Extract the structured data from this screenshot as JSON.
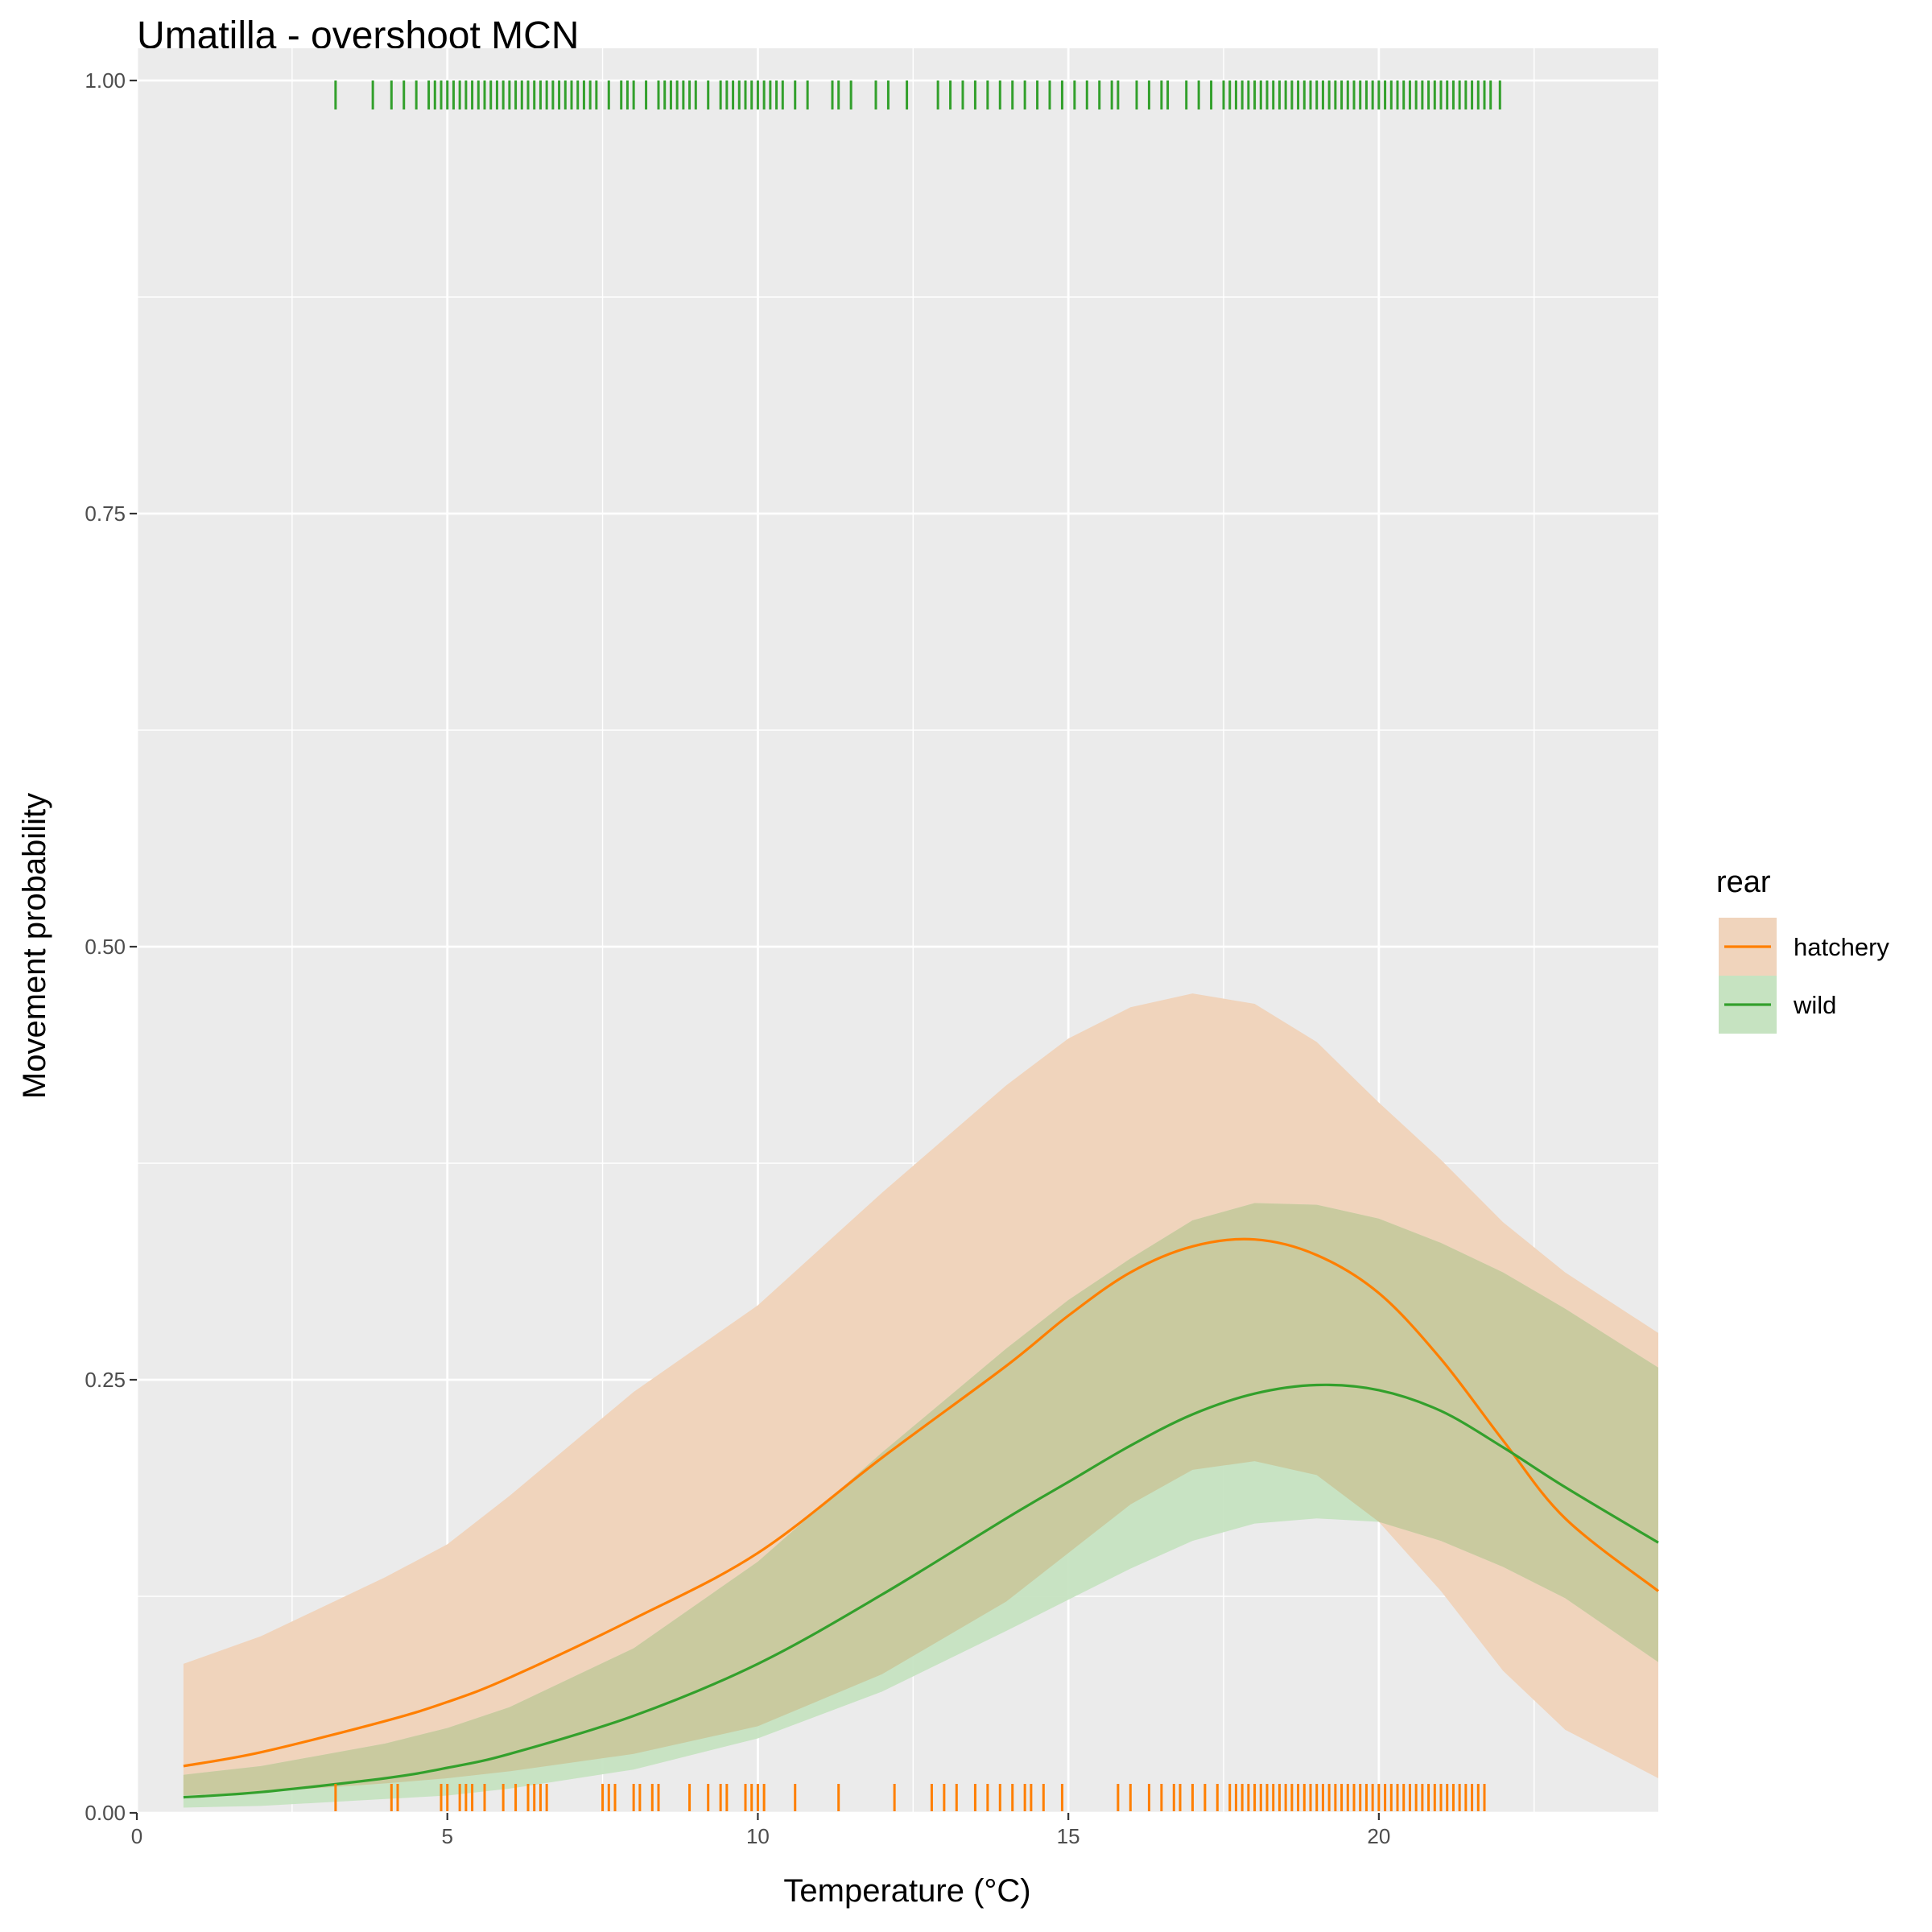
{
  "chart_data": {
    "type": "line",
    "title": "Umatilla - overshoot MCN",
    "xlabel": "Temperature (°C)",
    "ylabel": "Movement probability",
    "xlim": [
      0,
      24.5
    ],
    "ylim": [
      0,
      1
    ],
    "x_ticks": [
      0,
      5,
      10,
      15,
      20
    ],
    "y_ticks": [
      0,
      0.25,
      0.5,
      0.75,
      1
    ],
    "y_tick_labels": [
      "0.00",
      "0.25",
      "0.50",
      "0.75",
      "1.00"
    ],
    "grid": true,
    "legend": {
      "title": "rear",
      "position": "right"
    },
    "series": [
      {
        "name": "hatchery",
        "color": "#FF7F00",
        "fill": "#F0D4BC",
        "x": [
          0.75,
          2,
          4,
          5,
          6,
          8,
          10,
          12,
          14,
          15,
          16,
          17,
          18,
          19,
          20,
          21,
          22,
          23,
          24.5
        ],
        "y": [
          0.027,
          0.035,
          0.053,
          0.064,
          0.078,
          0.112,
          0.15,
          0.205,
          0.258,
          0.287,
          0.312,
          0.327,
          0.331,
          0.322,
          0.3,
          0.262,
          0.215,
          0.17,
          0.128
        ],
        "lower": [
          0.01,
          0.012,
          0.017,
          0.02,
          0.024,
          0.034,
          0.05,
          0.08,
          0.122,
          0.15,
          0.178,
          0.198,
          0.203,
          0.195,
          0.168,
          0.128,
          0.082,
          0.048,
          0.02
        ],
        "upper": [
          0.086,
          0.102,
          0.136,
          0.155,
          0.183,
          0.243,
          0.293,
          0.358,
          0.42,
          0.447,
          0.465,
          0.473,
          0.467,
          0.445,
          0.41,
          0.377,
          0.341,
          0.312,
          0.277
        ]
      },
      {
        "name": "wild",
        "color": "#33A02C",
        "fill": "#C6E3C1",
        "x": [
          0.75,
          2,
          4,
          5,
          6,
          8,
          10,
          12,
          14,
          15,
          16,
          17,
          18,
          19,
          20,
          21,
          22,
          23,
          24.5
        ],
        "y": [
          0.009,
          0.012,
          0.02,
          0.026,
          0.034,
          0.056,
          0.086,
          0.126,
          0.17,
          0.191,
          0.212,
          0.23,
          0.242,
          0.247,
          0.244,
          0.232,
          0.211,
          0.188,
          0.156
        ],
        "lower": [
          0.003,
          0.004,
          0.008,
          0.01,
          0.014,
          0.025,
          0.043,
          0.07,
          0.105,
          0.123,
          0.141,
          0.157,
          0.167,
          0.17,
          0.168,
          0.157,
          0.142,
          0.124,
          0.087
        ],
        "upper": [
          0.022,
          0.027,
          0.04,
          0.049,
          0.061,
          0.095,
          0.145,
          0.208,
          0.268,
          0.296,
          0.32,
          0.342,
          0.352,
          0.351,
          0.343,
          0.329,
          0.312,
          0.291,
          0.257
        ]
      }
    ],
    "rug": [
      {
        "name": "wild",
        "color": "#33A02C",
        "y": 1,
        "x": [
          3.2,
          3.8,
          4.1,
          4.3,
          4.5,
          4.7,
          4.8,
          4.9,
          5.0,
          5.1,
          5.2,
          5.3,
          5.4,
          5.5,
          5.6,
          5.7,
          5.8,
          5.9,
          6.0,
          6.1,
          6.2,
          6.3,
          6.4,
          6.5,
          6.6,
          6.7,
          6.8,
          6.9,
          7.0,
          7.1,
          7.2,
          7.3,
          7.4,
          7.6,
          7.8,
          7.9,
          8.0,
          8.2,
          8.4,
          8.5,
          8.6,
          8.7,
          8.8,
          8.9,
          9.0,
          9.2,
          9.4,
          9.5,
          9.6,
          9.7,
          9.8,
          9.9,
          10.0,
          10.1,
          10.2,
          10.3,
          10.4,
          10.6,
          10.8,
          11.2,
          11.3,
          11.5,
          11.9,
          12.1,
          12.4,
          12.9,
          13.1,
          13.3,
          13.5,
          13.7,
          13.9,
          14.1,
          14.3,
          14.5,
          14.7,
          14.9,
          15.1,
          15.3,
          15.5,
          15.7,
          15.8,
          16.1,
          16.3,
          16.5,
          16.6,
          16.9,
          17.1,
          17.3,
          17.5,
          17.6,
          17.7,
          17.8,
          17.9,
          18.0,
          18.1,
          18.2,
          18.3,
          18.4,
          18.5,
          18.6,
          18.7,
          18.8,
          18.9,
          19.0,
          19.1,
          19.2,
          19.3,
          19.4,
          19.5,
          19.6,
          19.7,
          19.8,
          19.9,
          20.0,
          20.1,
          20.2,
          20.3,
          20.4,
          20.5,
          20.6,
          20.7,
          20.8,
          20.9,
          21.0,
          21.1,
          21.2,
          21.3,
          21.4,
          21.5,
          21.6,
          21.7,
          21.8,
          21.95
        ]
      },
      {
        "name": "hatchery",
        "color": "#FF7F00",
        "y": 0,
        "x": [
          3.2,
          4.1,
          4.2,
          4.9,
          5.0,
          5.2,
          5.3,
          5.4,
          5.6,
          5.9,
          6.1,
          6.3,
          6.4,
          6.5,
          6.6,
          7.5,
          7.6,
          7.7,
          8.0,
          8.1,
          8.3,
          8.4,
          8.9,
          9.2,
          9.4,
          9.5,
          9.8,
          9.9,
          10.0,
          10.1,
          10.6,
          11.3,
          12.2,
          12.8,
          13.0,
          13.2,
          13.5,
          13.7,
          13.9,
          14.1,
          14.3,
          14.4,
          14.6,
          14.9,
          15.8,
          16.0,
          16.3,
          16.5,
          16.7,
          16.8,
          17.0,
          17.2,
          17.4,
          17.6,
          17.7,
          17.8,
          17.9,
          18.0,
          18.1,
          18.2,
          18.3,
          18.4,
          18.5,
          18.6,
          18.7,
          18.8,
          18.9,
          19.0,
          19.1,
          19.2,
          19.3,
          19.4,
          19.5,
          19.6,
          19.7,
          19.8,
          19.9,
          20.0,
          20.1,
          20.2,
          20.3,
          20.4,
          20.5,
          20.6,
          20.7,
          20.8,
          20.9,
          21.0,
          21.1,
          21.2,
          21.3,
          21.4,
          21.5,
          21.6,
          21.7
        ]
      }
    ]
  }
}
